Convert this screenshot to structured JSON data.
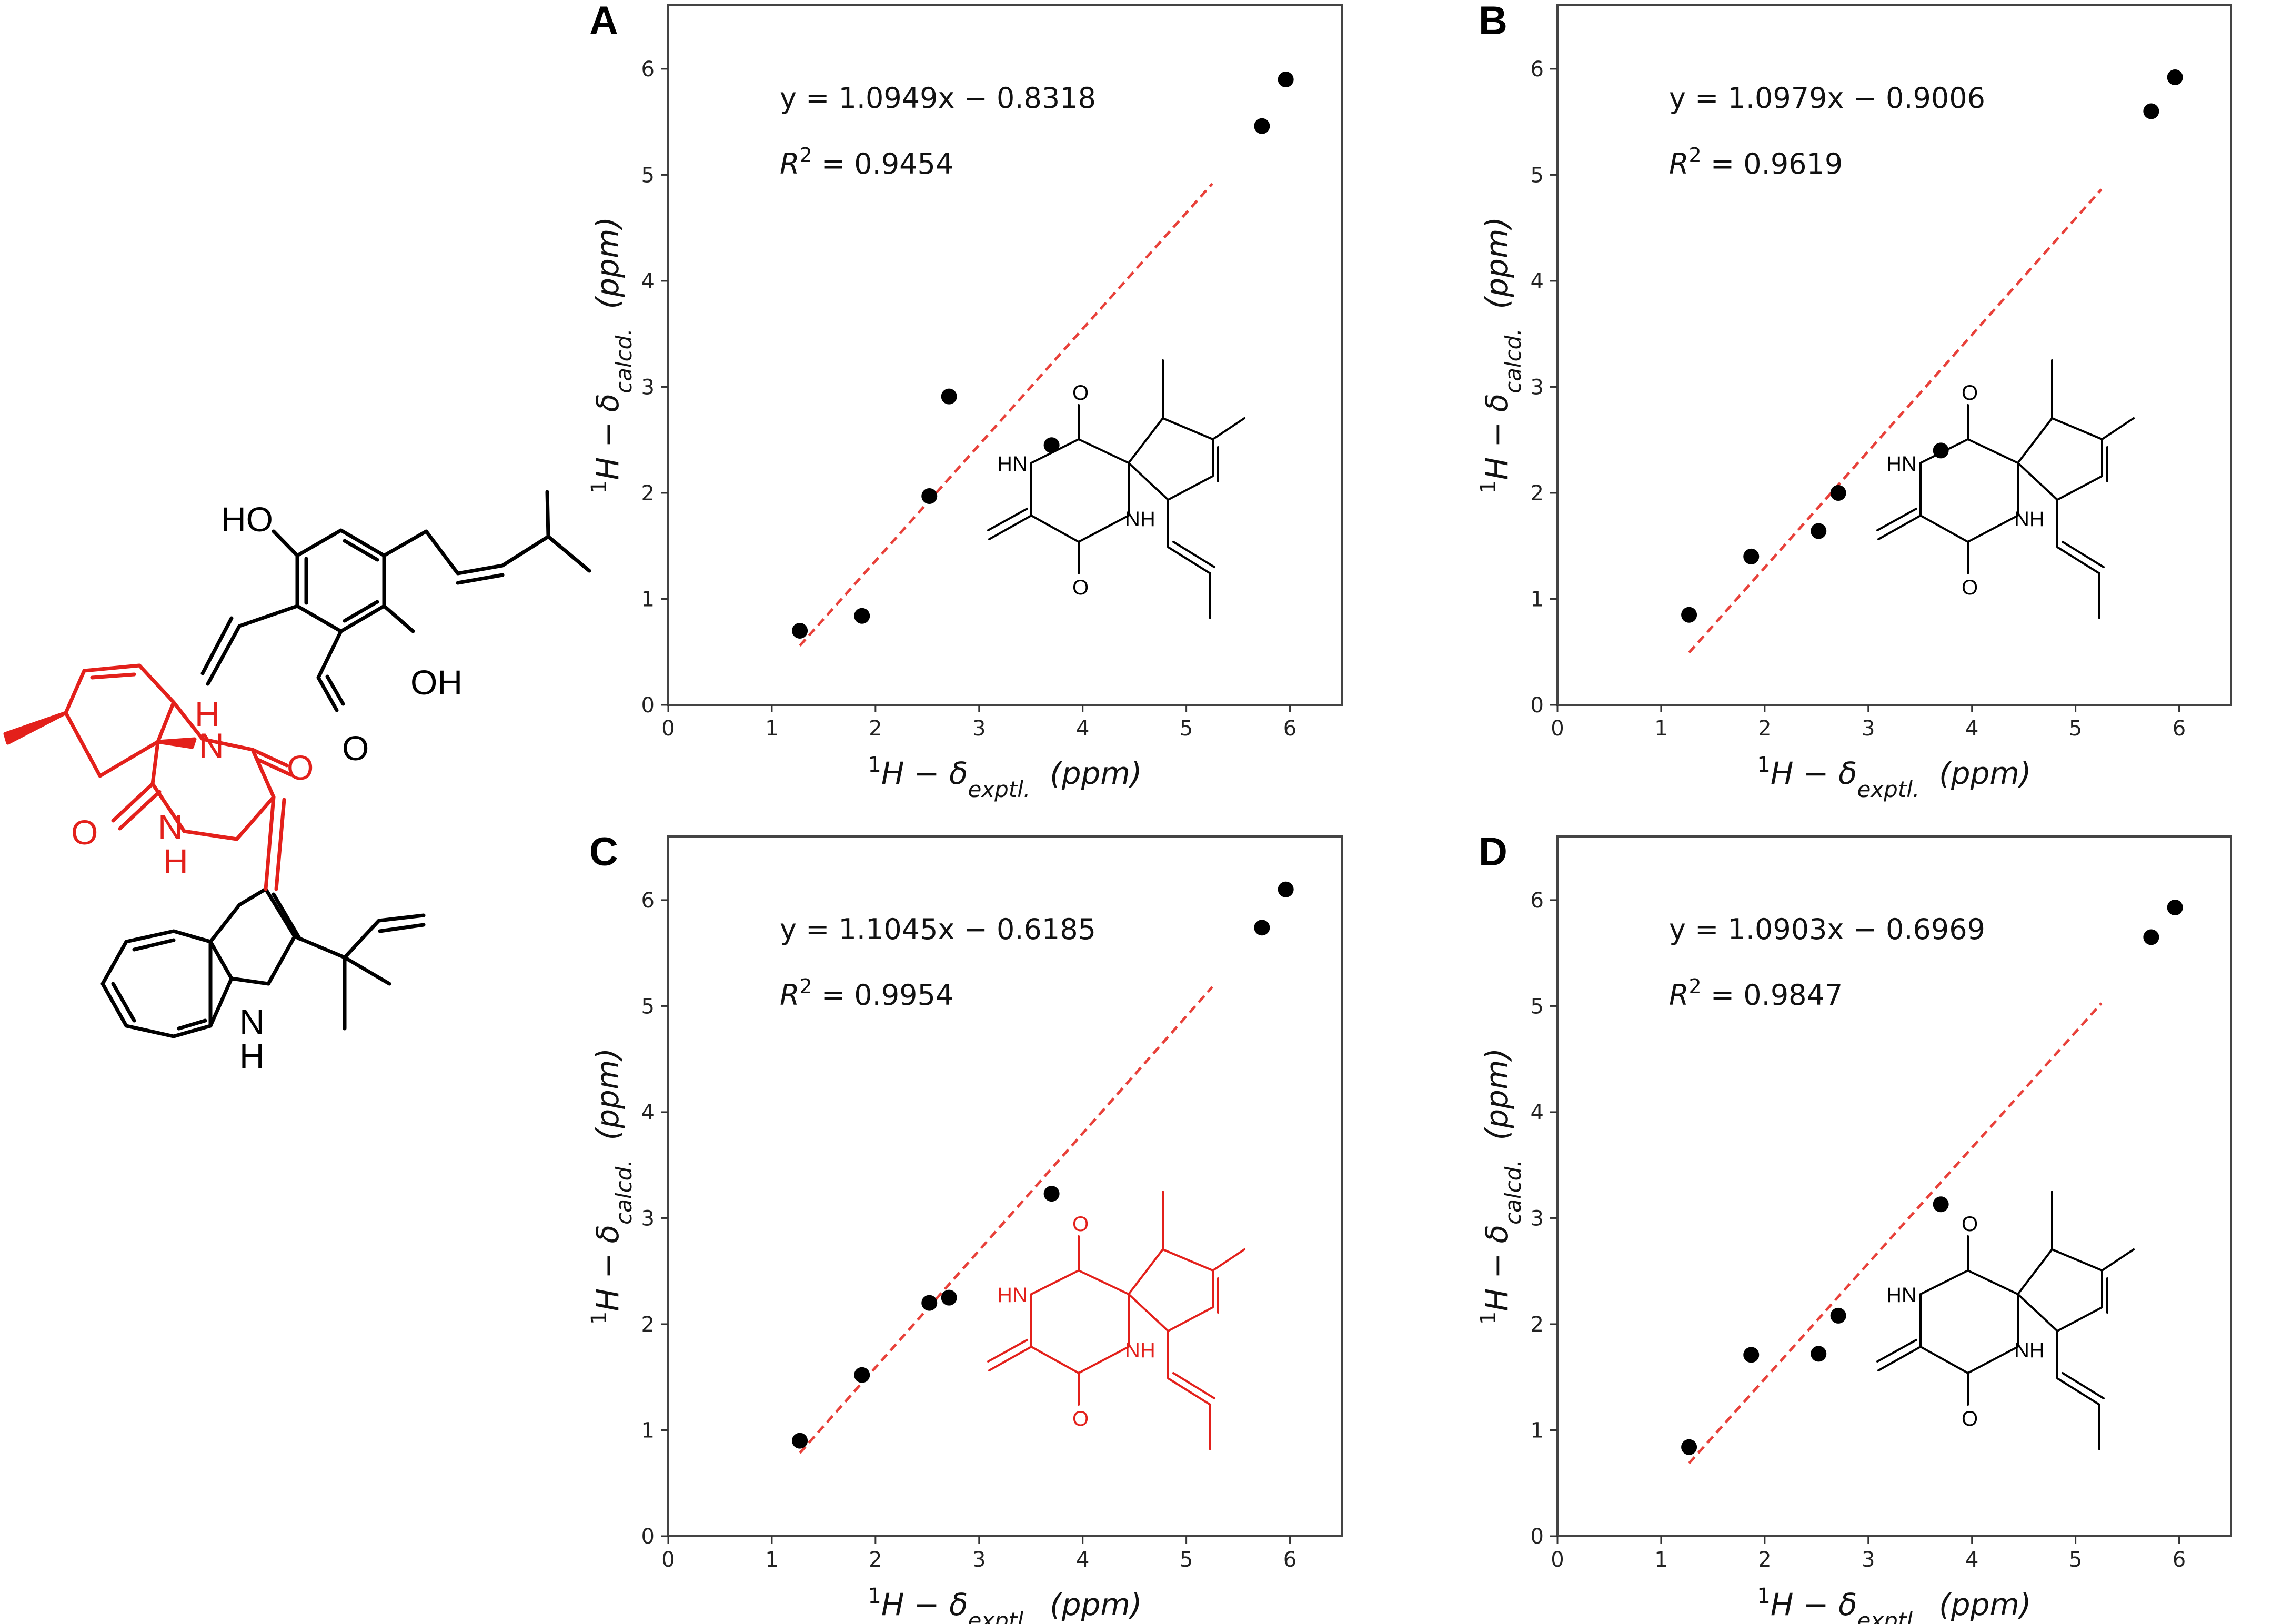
{
  "figure": {
    "colors": {
      "points": "#000000",
      "fit_line": "#e8413a",
      "highlight": "#e3201b",
      "frame": "#444444"
    },
    "molecule_left": {
      "atom_labels": [
        "HO",
        "OH",
        "O",
        "H",
        "N",
        "O",
        "O",
        "N",
        "H",
        "N",
        "H"
      ]
    }
  },
  "chart_data": [
    {
      "type": "scatter",
      "panel": "A",
      "xlabel_parts": {
        "base": "1",
        "pre": "H − δ",
        "sub": "exptl.",
        "unit": "(ppm)"
      },
      "ylabel_parts": {
        "base": "1",
        "pre": "H − δ",
        "sub": "calcd.",
        "unit": "(ppm)"
      },
      "xlim": [
        0,
        6.5
      ],
      "ylim": [
        0,
        6.6
      ],
      "xticks": [
        0,
        1,
        2,
        3,
        4,
        5,
        6
      ],
      "yticks": [
        0,
        1,
        2,
        3,
        4,
        5,
        6
      ],
      "points": {
        "x": [
          1.27,
          1.87,
          2.52,
          2.71,
          3.7,
          5.73,
          5.96
        ],
        "y": [
          0.7,
          0.84,
          1.97,
          2.91,
          2.45,
          5.46,
          5.9
        ]
      },
      "fit": {
        "slope": 1.0949,
        "intercept": -0.8318,
        "x_range": [
          1.27,
          5.25
        ]
      },
      "equation": "y = 1.0949x − 0.8318",
      "r2_label": "R",
      "r2_sup": "2",
      "r2_value": " = 0.9454",
      "structure": {
        "labels": [
          "O",
          "HN",
          "NH",
          "O"
        ],
        "color": "#000000"
      }
    },
    {
      "type": "scatter",
      "panel": "B",
      "xlabel_parts": {
        "base": "1",
        "pre": "H − δ",
        "sub": "exptl.",
        "unit": "(ppm)"
      },
      "ylabel_parts": {
        "base": "1",
        "pre": "H − δ",
        "sub": "calcd.",
        "unit": "(ppm)"
      },
      "xlim": [
        0,
        6.5
      ],
      "ylim": [
        0,
        6.6
      ],
      "xticks": [
        0,
        1,
        2,
        3,
        4,
        5,
        6
      ],
      "yticks": [
        0,
        1,
        2,
        3,
        4,
        5,
        6
      ],
      "points": {
        "x": [
          1.27,
          1.87,
          2.52,
          2.71,
          3.7,
          5.73,
          5.96
        ],
        "y": [
          0.85,
          1.4,
          1.64,
          2.0,
          2.4,
          5.6,
          5.92
        ]
      },
      "fit": {
        "slope": 1.0979,
        "intercept": -0.9006,
        "x_range": [
          1.27,
          5.25
        ]
      },
      "equation": "y = 1.0979x − 0.9006",
      "r2_label": "R",
      "r2_sup": "2",
      "r2_value": " = 0.9619",
      "structure": {
        "labels": [
          "O",
          "HN",
          "NH",
          "O"
        ],
        "color": "#000000"
      }
    },
    {
      "type": "scatter",
      "panel": "C",
      "xlabel_parts": {
        "base": "1",
        "pre": "H − δ",
        "sub": "exptl.",
        "unit": "(ppm)"
      },
      "ylabel_parts": {
        "base": "1",
        "pre": "H − δ",
        "sub": "calcd.",
        "unit": "(ppm)"
      },
      "xlim": [
        0,
        6.5
      ],
      "ylim": [
        0,
        6.6
      ],
      "xticks": [
        0,
        1,
        2,
        3,
        4,
        5,
        6
      ],
      "yticks": [
        0,
        1,
        2,
        3,
        4,
        5,
        6
      ],
      "points": {
        "x": [
          1.27,
          1.87,
          2.52,
          2.71,
          3.7,
          5.73,
          5.96
        ],
        "y": [
          0.9,
          1.52,
          2.2,
          2.25,
          3.23,
          5.74,
          6.1
        ]
      },
      "fit": {
        "slope": 1.1045,
        "intercept": -0.6185,
        "x_range": [
          1.27,
          5.25
        ]
      },
      "equation": "y = 1.1045x − 0.6185",
      "r2_label": "R",
      "r2_sup": "2",
      "r2_value": " = 0.9954",
      "structure": {
        "labels": [
          "O",
          "HN",
          "NH",
          "O"
        ],
        "color": "#e3201b"
      }
    },
    {
      "type": "scatter",
      "panel": "D",
      "xlabel_parts": {
        "base": "1",
        "pre": "H − δ",
        "sub": "exptl.",
        "unit": "(ppm)"
      },
      "ylabel_parts": {
        "base": "1",
        "pre": "H − δ",
        "sub": "calcd.",
        "unit": "(ppm)"
      },
      "xlim": [
        0,
        6.5
      ],
      "ylim": [
        0,
        6.6
      ],
      "xticks": [
        0,
        1,
        2,
        3,
        4,
        5,
        6
      ],
      "yticks": [
        0,
        1,
        2,
        3,
        4,
        5,
        6
      ],
      "points": {
        "x": [
          1.27,
          1.87,
          2.52,
          2.71,
          3.7,
          5.73,
          5.96
        ],
        "y": [
          0.84,
          1.71,
          1.72,
          2.08,
          3.13,
          5.65,
          5.93
        ]
      },
      "fit": {
        "slope": 1.0903,
        "intercept": -0.6969,
        "x_range": [
          1.27,
          5.25
        ]
      },
      "equation": "y = 1.0903x − 0.6969",
      "r2_label": "R",
      "r2_sup": "2",
      "r2_value": " = 0.9847",
      "structure": {
        "labels": [
          "O",
          "HN",
          "NH",
          "O"
        ],
        "color": "#000000"
      }
    }
  ]
}
